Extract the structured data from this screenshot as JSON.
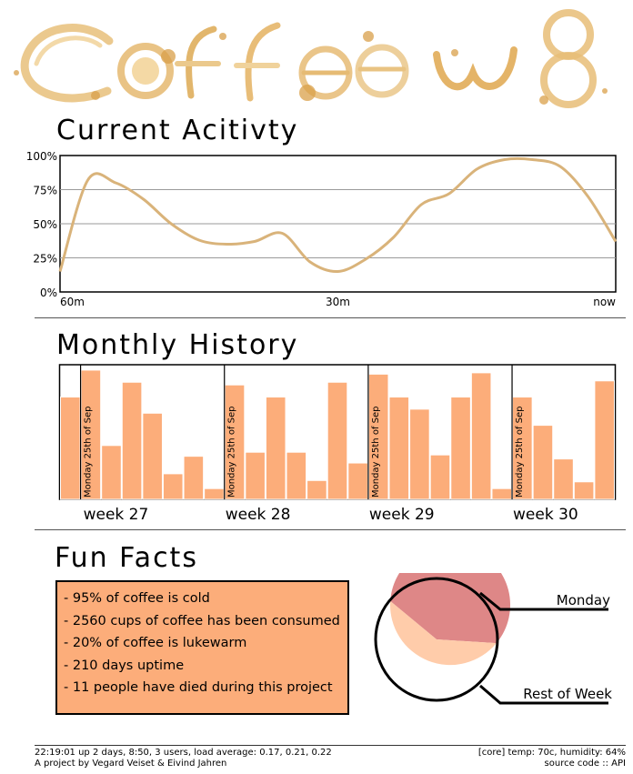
{
  "logo": {
    "text": "Coffee w8"
  },
  "current_activity": {
    "title": "Current Acitivty"
  },
  "monthly_history": {
    "title": "Monthly History"
  },
  "fun_facts": {
    "title": "Fun Facts",
    "items": [
      "- 95% of coffee is cold",
      "- 2560 cups of coffee has been consumed",
      "- 20% of coffee is lukewarm",
      "- 210 days uptime",
      "- 11 people have died during this project"
    ]
  },
  "footer": {
    "uptime": "22:19:01 up 2 days,  8:50,  3 users,  load average: 0.17, 0.21, 0.22",
    "credits": "A project by Vegard Veiset & Eivind Jahren",
    "sensors": "[core] temp: 70c,  humidity: 64%",
    "source_code": "source code",
    "separator": " :: ",
    "api": "API"
  },
  "colors": {
    "line": "#d9b37a",
    "bar": "#fcad7a",
    "pie_monday": "#de8787",
    "pie_rest": "#ffccaa",
    "logo": "#e8b76a"
  },
  "chart_data": [
    {
      "type": "line",
      "title": "Current Acitivty",
      "x": [
        60,
        57,
        54,
        51,
        48,
        45,
        42,
        39,
        36,
        33,
        30,
        27,
        24,
        21,
        18,
        15,
        12,
        9,
        6,
        3,
        0
      ],
      "values": [
        0.15,
        0.82,
        0.8,
        0.68,
        0.5,
        0.38,
        0.35,
        0.37,
        0.43,
        0.22,
        0.15,
        0.24,
        0.4,
        0.64,
        0.72,
        0.9,
        0.97,
        0.97,
        0.92,
        0.7,
        0.37
      ],
      "xtick_labels": [
        "60m",
        "30m",
        "now"
      ],
      "ytick_labels": [
        "0%",
        "25%",
        "50%",
        "75%",
        "100%"
      ],
      "ylim": [
        0,
        1
      ],
      "grid": true
    },
    {
      "type": "bar",
      "title": "Monthly History",
      "weeks": [
        {
          "label": "week 27",
          "marker": "Monday 25th of Sep",
          "values": [
            0.76,
            0.96,
            0.4,
            0.87,
            0.64,
            0.19,
            0.32,
            0.08
          ]
        },
        {
          "label": "week 28",
          "marker": "Monday 25th of Sep",
          "values": [
            0.85,
            0.35,
            0.76,
            0.35,
            0.14,
            0.87,
            0.27
          ]
        },
        {
          "label": "week 29",
          "marker": "Monday 25th of Sep",
          "values": [
            0.93,
            0.76,
            0.67,
            0.33,
            0.76,
            0.94,
            0.08
          ]
        },
        {
          "label": "week 30",
          "marker": "Monday 25th of Sep",
          "values": [
            0.76,
            0.55,
            0.3,
            0.13,
            0.88
          ]
        }
      ],
      "ylim": [
        0,
        1
      ]
    },
    {
      "type": "pie",
      "labels": [
        "Monday",
        "Rest of Week"
      ],
      "values": [
        60,
        40
      ],
      "legend": "right"
    }
  ]
}
